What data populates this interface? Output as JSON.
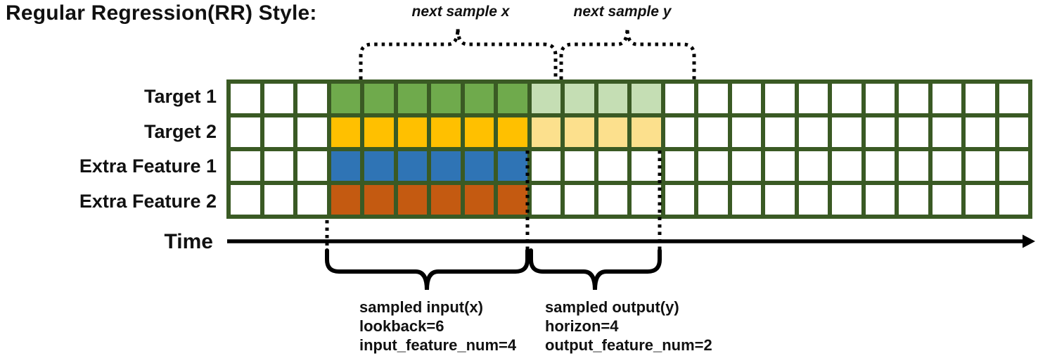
{
  "title": "Regular Regression(RR) Style:",
  "top_annotations": {
    "next_x": "next sample x",
    "next_y": "next sample y"
  },
  "time_axis": {
    "label": "Time"
  },
  "grid": {
    "columns": 24,
    "border_color": "#3A5A24",
    "cell_color": "#FFFFFF",
    "input_start": 3,
    "output_start": 9,
    "rows": [
      {
        "label": "Target 1",
        "input_color": "#6FAA4C",
        "input_len": 6,
        "output_color": "#C5DEB4",
        "output_len": 4
      },
      {
        "label": "Target 2",
        "input_color": "#FFC000",
        "input_len": 6,
        "output_color": "#FCE08D",
        "output_len": 4
      },
      {
        "label": "Extra Feature 1",
        "input_color": "#2F74B5",
        "input_len": 6,
        "output_color": null,
        "output_len": 0
      },
      {
        "label": "Extra Feature 2",
        "input_color": "#C45A11",
        "input_len": 6,
        "output_color": null,
        "output_len": 0
      }
    ]
  },
  "notes": {
    "input": {
      "lines": [
        "sampled input(x)",
        "lookback=6",
        "input_feature_num=4"
      ]
    },
    "output": {
      "lines": [
        "sampled output(y)",
        "horizon=4",
        "output_feature_num=2"
      ]
    }
  },
  "line_color": "#000000"
}
